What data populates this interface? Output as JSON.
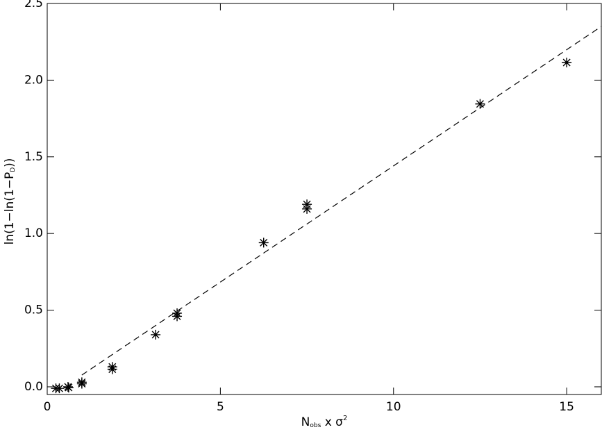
{
  "chart_data": {
    "type": "scatter",
    "x_label": {
      "main": "N",
      "sub": "obs",
      "rest": " x σ",
      "sup": "2"
    },
    "y_label": {
      "main": "ln(1−ln(1−P",
      "sub": "D",
      "rest": "))"
    },
    "xlim": [
      0,
      16
    ],
    "ylim": [
      -0.05,
      2.5
    ],
    "xticks": [
      0,
      5,
      10,
      15
    ],
    "yticks": [
      {
        "value": 0,
        "label": "0.0"
      },
      0.5,
      {
        "value": 1,
        "label": "1.0"
      },
      1.5,
      {
        "value": 2,
        "label": "2.0"
      },
      2.5
    ],
    "color": "#000000",
    "x": [
      0.25,
      0.35,
      0.6,
      0.62,
      1.0,
      1.0,
      1.88,
      1.88,
      3.13,
      3.75,
      3.75,
      6.25,
      7.5,
      7.5,
      12.5,
      15.0
    ],
    "values": [
      -0.01,
      -0.01,
      0.0,
      -0.005,
      0.03,
      0.02,
      0.13,
      0.115,
      0.34,
      0.48,
      0.46,
      0.94,
      1.19,
      1.16,
      1.845,
      2.115
    ],
    "fit": {
      "x": [
        1.0,
        16
      ],
      "values": [
        0.077,
        2.35
      ]
    }
  }
}
